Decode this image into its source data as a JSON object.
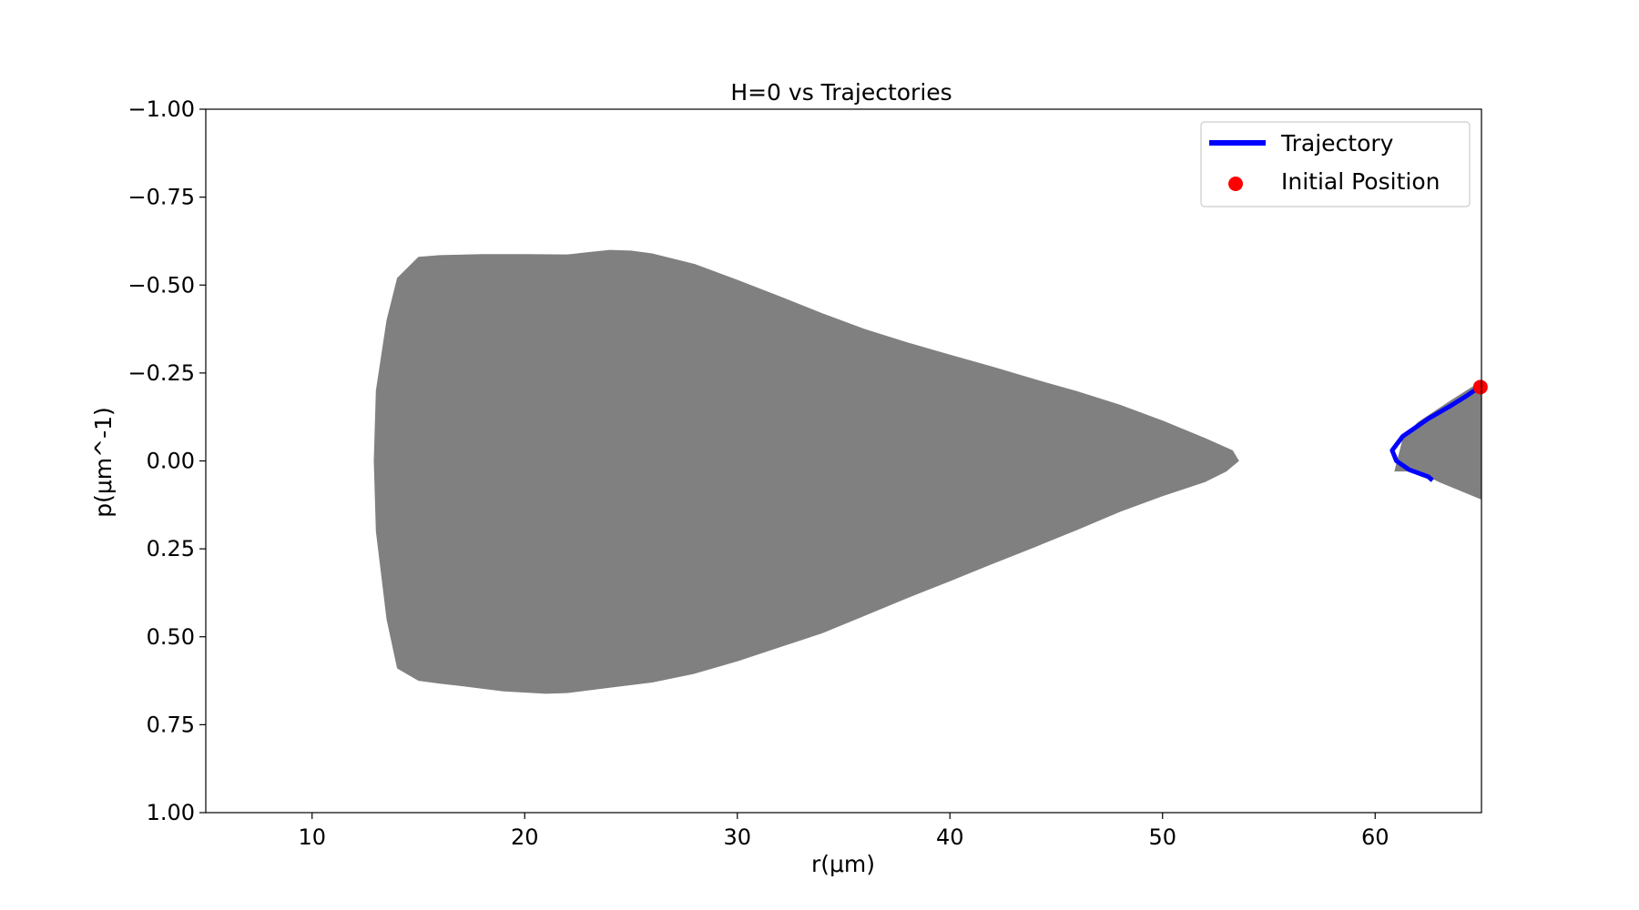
{
  "chart_data": {
    "type": "line",
    "title": "H=0 vs Trajectories",
    "xlabel": "r(μm)",
    "ylabel": "p(μm^-1)",
    "xlim": [
      5,
      65
    ],
    "ylim": [
      -1.0,
      1.0
    ],
    "y_inverted": true,
    "grid": false,
    "x_ticks": [
      10,
      20,
      30,
      40,
      50,
      60
    ],
    "y_ticks": [
      -1.0,
      -0.75,
      -0.5,
      -0.25,
      0.0,
      0.25,
      0.5,
      0.75,
      1.0
    ],
    "x_tick_labels": [
      "10",
      "20",
      "30",
      "40",
      "50",
      "60"
    ],
    "y_tick_labels": [
      "−1.00",
      "−0.75",
      "−0.50",
      "−0.25",
      "0.00",
      "0.25",
      "0.50",
      "0.75",
      "1.00"
    ],
    "legend": {
      "placement": "top-right",
      "entries": [
        {
          "label": "Trajectory",
          "marker": "line",
          "color": "#0000ff"
        },
        {
          "label": "Initial Position",
          "marker": "dot",
          "color": "#ff0000"
        }
      ]
    },
    "regions": [
      {
        "fill_color": "#808080",
        "points": [
          [
            14.0,
            -0.52
          ],
          [
            15.0,
            -0.58
          ],
          [
            16.0,
            -0.585
          ],
          [
            18.0,
            -0.588
          ],
          [
            20.0,
            -0.588
          ],
          [
            22.0,
            -0.587
          ],
          [
            24.0,
            -0.6
          ],
          [
            25.0,
            -0.598
          ],
          [
            26.0,
            -0.59
          ],
          [
            28.0,
            -0.56
          ],
          [
            30.0,
            -0.515
          ],
          [
            32.0,
            -0.468
          ],
          [
            34.0,
            -0.42
          ],
          [
            36.0,
            -0.375
          ],
          [
            38.0,
            -0.337
          ],
          [
            40.0,
            -0.302
          ],
          [
            42.0,
            -0.268
          ],
          [
            44.0,
            -0.232
          ],
          [
            46.0,
            -0.198
          ],
          [
            48.0,
            -0.16
          ],
          [
            50.0,
            -0.115
          ],
          [
            52.0,
            -0.065
          ],
          [
            53.3,
            -0.03
          ],
          [
            53.6,
            0.0
          ],
          [
            53.0,
            0.03
          ],
          [
            52.0,
            0.06
          ],
          [
            50.0,
            0.1
          ],
          [
            48.0,
            0.145
          ],
          [
            46.0,
            0.196
          ],
          [
            44.0,
            0.245
          ],
          [
            42.0,
            0.293
          ],
          [
            40.0,
            0.342
          ],
          [
            38.0,
            0.39
          ],
          [
            36.0,
            0.44
          ],
          [
            34.0,
            0.49
          ],
          [
            32.0,
            0.53
          ],
          [
            30.0,
            0.57
          ],
          [
            28.0,
            0.605
          ],
          [
            26.0,
            0.63
          ],
          [
            24.0,
            0.645
          ],
          [
            22.0,
            0.66
          ],
          [
            21.0,
            0.662
          ],
          [
            19.0,
            0.655
          ],
          [
            17.0,
            0.64
          ],
          [
            16.0,
            0.633
          ],
          [
            15.0,
            0.625
          ],
          [
            14.0,
            0.59
          ],
          [
            13.5,
            0.45
          ],
          [
            13.0,
            0.2
          ],
          [
            12.9,
            0.0
          ],
          [
            13.0,
            -0.2
          ],
          [
            13.5,
            -0.4
          ]
        ]
      },
      {
        "fill_color": "#808080",
        "points": [
          [
            60.9,
            0.03
          ],
          [
            61.3,
            -0.065
          ],
          [
            62.0,
            -0.11
          ],
          [
            63.5,
            -0.17
          ],
          [
            64.8,
            -0.22
          ],
          [
            65.0,
            -0.22
          ],
          [
            65.0,
            0.11
          ],
          [
            63.0,
            0.06
          ],
          [
            62.0,
            0.03
          ]
        ]
      }
    ],
    "series": [
      {
        "name": "Trajectory",
        "color": "#0000ff",
        "points": [
          [
            64.9,
            -0.21
          ],
          [
            64.3,
            -0.185
          ],
          [
            63.5,
            -0.155
          ],
          [
            62.5,
            -0.12
          ],
          [
            61.3,
            -0.07
          ],
          [
            60.8,
            -0.03
          ],
          [
            61.0,
            0.0
          ],
          [
            61.6,
            0.025
          ],
          [
            62.5,
            0.045
          ],
          [
            62.7,
            0.055
          ]
        ]
      }
    ],
    "initial_position": {
      "x": 64.95,
      "y": -0.21,
      "color": "#ff0000"
    }
  }
}
